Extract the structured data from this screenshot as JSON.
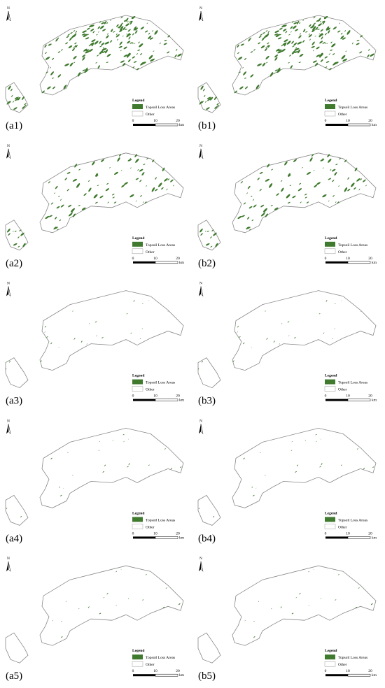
{
  "panels": [
    {
      "label": "(a1)",
      "north": "N",
      "legend": {
        "title": "Legend",
        "items": [
          "Topsoil Loss Areas",
          "Other"
        ]
      },
      "scale": {
        "ticks": [
          0,
          10,
          20
        ],
        "unit": "km"
      }
    },
    {
      "label": "(b1)",
      "north": "N",
      "legend": {
        "title": "Legend",
        "items": [
          "Topsoil Loss Areas",
          "Other"
        ]
      },
      "scale": {
        "ticks": [
          0,
          10,
          20
        ],
        "unit": "km"
      }
    },
    {
      "label": "(a2)",
      "north": "N",
      "legend": {
        "title": "Legend",
        "items": [
          "Topsoil Loss Areas",
          "Other"
        ]
      },
      "scale": {
        "ticks": [
          0,
          10,
          20
        ],
        "unit": "km"
      }
    },
    {
      "label": "(b2)",
      "north": "N",
      "legend": {
        "title": "Legend",
        "items": [
          "Topsoil Loss Areas",
          "Other"
        ]
      },
      "scale": {
        "ticks": [
          0,
          10,
          20
        ],
        "unit": "km"
      }
    },
    {
      "label": "(a3)",
      "north": "N",
      "legend": {
        "title": "Legend",
        "items": [
          "Topsoil Loss Areas",
          "Other"
        ]
      },
      "scale": {
        "ticks": [
          0,
          10,
          20
        ],
        "unit": "km"
      }
    },
    {
      "label": "(b3)",
      "north": "N",
      "legend": {
        "title": "Legend",
        "items": [
          "Topsoil Loss Areas",
          "Other"
        ]
      },
      "scale": {
        "ticks": [
          0,
          10,
          20
        ],
        "unit": "km"
      }
    },
    {
      "label": "(a4)",
      "north": "N",
      "legend": {
        "title": "Legend",
        "items": [
          "Topsoil Loss Areas",
          "Other"
        ]
      },
      "scale": {
        "ticks": [
          0,
          10,
          20
        ],
        "unit": "km"
      }
    },
    {
      "label": "(b4)",
      "north": "N",
      "legend": {
        "title": "Legend",
        "items": [
          "Topsoil Loss Areas",
          "Other"
        ]
      },
      "scale": {
        "ticks": [
          0,
          10,
          20
        ],
        "unit": "km"
      }
    },
    {
      "label": "(a5)",
      "north": "N",
      "legend": {
        "title": "Legend",
        "items": [
          "Topsoil Loss Areas",
          "Other"
        ]
      },
      "scale": {
        "ticks": [
          0,
          10,
          20
        ],
        "unit": "km"
      }
    },
    {
      "label": "(b5)",
      "north": "N",
      "legend": {
        "title": "Legend",
        "items": [
          "Topsoil Loss Areas",
          "Other"
        ]
      },
      "scale": {
        "ticks": [
          0,
          10,
          20
        ],
        "unit": "km"
      }
    }
  ]
}
